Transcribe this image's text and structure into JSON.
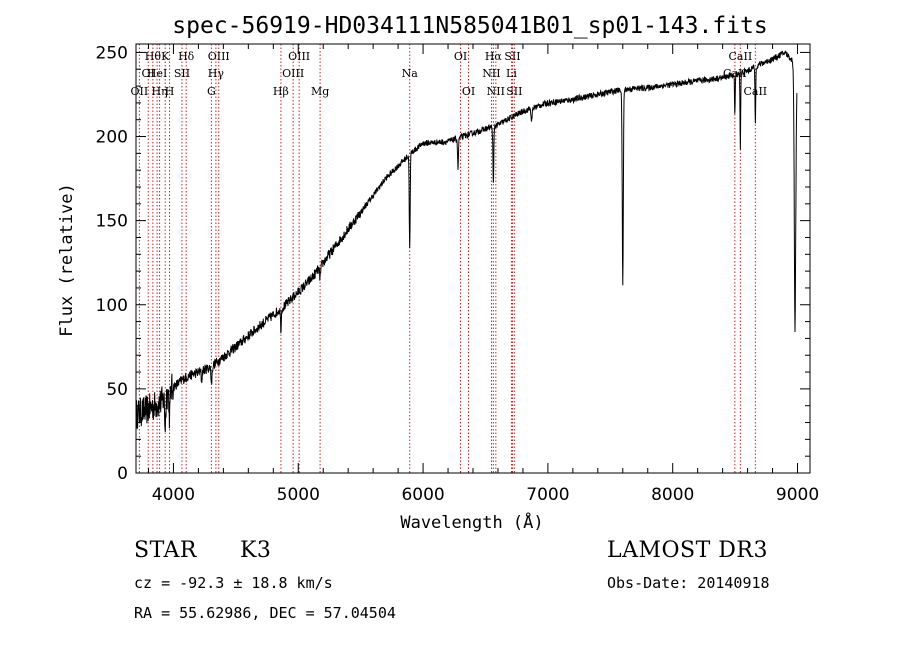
{
  "chart_data": {
    "type": "line",
    "title": "spec-56919-HD034111N585041B01_sp01-143.fits",
    "xlabel": "Wavelength (Å)",
    "ylabel": "Flux (relative)",
    "xlim": [
      3700,
      9100
    ],
    "ylim": [
      0,
      255
    ],
    "xticks": [
      4000,
      5000,
      6000,
      7000,
      8000,
      9000
    ],
    "yticks": [
      0,
      50,
      100,
      150,
      200,
      250
    ],
    "continuum": {
      "x": [
        3700,
        3800,
        3900,
        3980,
        4100,
        4300,
        4500,
        4700,
        4900,
        5100,
        5300,
        5500,
        5700,
        5900,
        6000,
        6200,
        6400,
        6600,
        6800,
        7000,
        7200,
        7400,
        7600,
        7800,
        8000,
        8200,
        8400,
        8600,
        8700,
        8800,
        8900,
        8960,
        8990
      ],
      "y": [
        35,
        38,
        42,
        50,
        57,
        63,
        75,
        88,
        100,
        115,
        135,
        155,
        175,
        190,
        196,
        197,
        202,
        207,
        215,
        220,
        222,
        225,
        228,
        229,
        231,
        233,
        235,
        239,
        243,
        246,
        250,
        245,
        230
      ]
    },
    "absorption_features": [
      {
        "x": 3934,
        "depth": 18,
        "width": 6
      },
      {
        "x": 3969,
        "depth": 15,
        "width": 6
      },
      {
        "x": 4226,
        "depth": 6,
        "width": 5
      },
      {
        "x": 4305,
        "depth": 10,
        "width": 6
      },
      {
        "x": 4861,
        "depth": 12,
        "width": 5
      },
      {
        "x": 5175,
        "depth": 6,
        "width": 8
      },
      {
        "x": 5893,
        "depth": 55,
        "width": 5
      },
      {
        "x": 6280,
        "depth": 18,
        "width": 5
      },
      {
        "x": 6563,
        "depth": 35,
        "width": 5
      },
      {
        "x": 6870,
        "depth": 8,
        "width": 6
      },
      {
        "x": 7600,
        "depth": 118,
        "width": 6
      },
      {
        "x": 8498,
        "depth": 25,
        "width": 4
      },
      {
        "x": 8542,
        "depth": 45,
        "width": 4
      },
      {
        "x": 8662,
        "depth": 35,
        "width": 4
      },
      {
        "x": 8980,
        "depth": 150,
        "width": 8
      }
    ],
    "spectral_lines": [
      {
        "x": 3727,
        "label": "OII",
        "row": 3
      },
      {
        "x": 3798,
        "label": "OI",
        "row": 2
      },
      {
        "x": 3835,
        "label": "Hθ",
        "row": 1
      },
      {
        "x": 3869,
        "label": "HeI",
        "row": 2
      },
      {
        "x": 3889,
        "label": "Hη",
        "row": 3
      },
      {
        "x": 3934,
        "label": "K",
        "row": 1
      },
      {
        "x": 3969,
        "label": "H",
        "row": 3
      },
      {
        "x": 4068,
        "label": "SII",
        "row": 2
      },
      {
        "x": 4102,
        "label": "Hδ",
        "row": 1
      },
      {
        "x": 4304,
        "label": "G",
        "row": 3
      },
      {
        "x": 4340,
        "label": "Hγ",
        "row": 2
      },
      {
        "x": 4363,
        "label": "OIII",
        "row": 1
      },
      {
        "x": 4861,
        "label": "Hβ",
        "row": 3
      },
      {
        "x": 4959,
        "label": "OIII",
        "row": 2
      },
      {
        "x": 5007,
        "label": "OIII",
        "row": 1
      },
      {
        "x": 5175,
        "label": "Mg",
        "row": 3
      },
      {
        "x": 5893,
        "label": "Na",
        "row": 2
      },
      {
        "x": 6300,
        "label": "OI",
        "row": 1
      },
      {
        "x": 6364,
        "label": "OI",
        "row": 3
      },
      {
        "x": 6548,
        "label": "NII",
        "row": 2
      },
      {
        "x": 6563,
        "label": "Hα",
        "row": 1
      },
      {
        "x": 6583,
        "label": "NII",
        "row": 3
      },
      {
        "x": 6708,
        "label": "Li",
        "row": 2
      },
      {
        "x": 6716,
        "label": "SII",
        "row": 1
      },
      {
        "x": 6731,
        "label": "SII",
        "row": 3
      },
      {
        "x": 8498,
        "label": "CaII",
        "row": 2
      },
      {
        "x": 8542,
        "label": "CaII",
        "row": 1
      },
      {
        "x": 8662,
        "label": "CaII",
        "row": 3
      }
    ]
  },
  "info": {
    "object_class": "STAR",
    "subclass": "K3",
    "survey": "LAMOST DR3",
    "redshift": "cz = -92.3 ± 18.8 km/s",
    "obs_date": "Obs-Date: 20140918",
    "coords": "RA =  55.62986, DEC =  57.04504"
  }
}
